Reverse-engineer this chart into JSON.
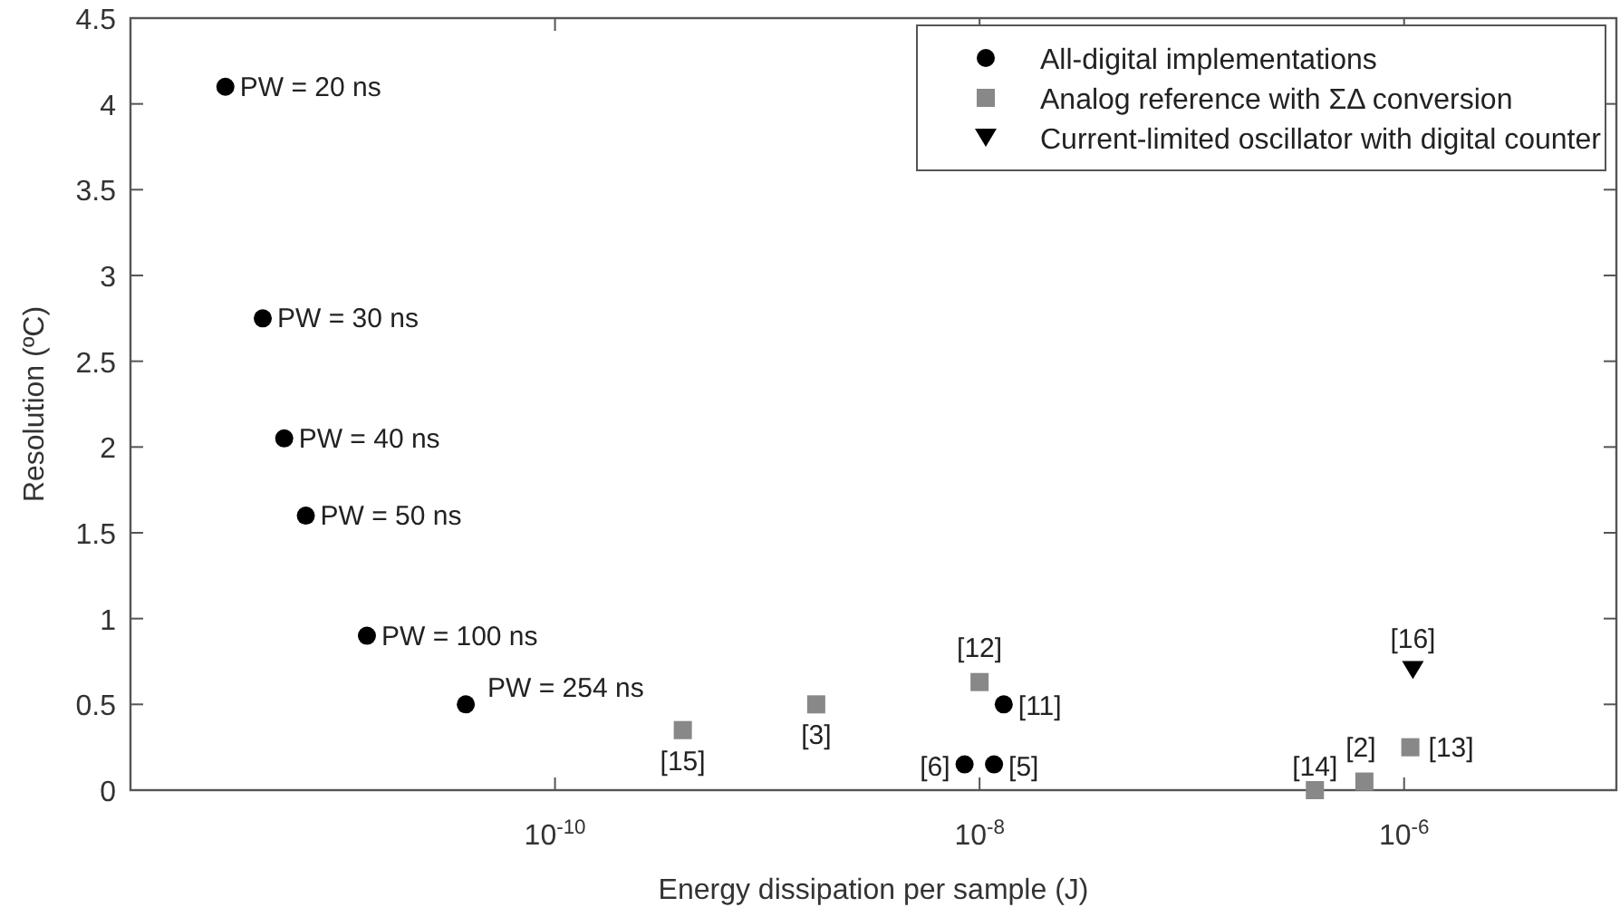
{
  "chart_data": {
    "type": "scatter",
    "xlabel": "Energy dissipation per sample (J)",
    "ylabel": "Resolution (ºC)",
    "log": "x",
    "xlim": [
      1e-12,
      1e-05
    ],
    "xticks": [
      {
        "value": 1e-10,
        "label": "10$^{-10}$"
      },
      {
        "value": 1e-08,
        "label": "10$^{-8}$"
      },
      {
        "value": 1e-06,
        "label": "10$^{-6}$"
      }
    ],
    "ylim": [
      0,
      4.5
    ],
    "yticks": [
      0,
      0.5,
      1,
      1.5,
      2,
      2.5,
      3,
      3.5,
      4,
      4.5
    ],
    "grid": false,
    "legend": "top right",
    "series": [
      {
        "name": "All-digital implementations",
        "color": "#000000",
        "marker": "circle",
        "x": [
          2.8e-12,
          4.2e-12,
          5.3e-12,
          6.7e-12,
          1.3e-11,
          3.8e-11,
          1.3e-08,
          8.5e-09,
          1.17e-08
        ],
        "values": [
          4.1,
          2.75,
          2.05,
          1.6,
          0.9,
          0.5,
          0.5,
          0.15,
          0.15
        ]
      },
      {
        "name": "Analog reference with ΣΔ conversion",
        "color": "#888888",
        "marker": "square",
        "x": [
          4e-10,
          1.7e-09,
          1e-08,
          3.8e-07,
          6.5e-07,
          1.07e-06
        ],
        "values": [
          0.35,
          0.5,
          0.63,
          0,
          0.05,
          0.25
        ]
      },
      {
        "name": "Current-limited oscillator with digital counter",
        "color": "#000000",
        "marker": "triangle",
        "x": [
          1.1e-06
        ],
        "values": [
          0.7
        ]
      }
    ],
    "annotations": [
      {
        "text": "PW = 20 ns",
        "x": 2.8e-12,
        "y": 4.1
      },
      {
        "text": "PW = 30 ns",
        "x": 4.2e-12,
        "y": 2.75
      },
      {
        "text": "PW = 40 ns",
        "x": 5.3e-12,
        "y": 2.05
      },
      {
        "text": "PW = 50 ns",
        "x": 6.7e-12,
        "y": 1.6
      },
      {
        "text": "PW = 100 ns",
        "x": 1.3e-11,
        "y": 0.9
      },
      {
        "text": "PW = 254 ns",
        "x": 3.8e-11,
        "y": 0.5
      },
      {
        "text": "[15]",
        "x": 4e-10,
        "y": 0.35
      },
      {
        "text": "[3]",
        "x": 1.7e-09,
        "y": 0.5
      },
      {
        "text": "[12]",
        "x": 1e-08,
        "y": 0.63
      },
      {
        "text": "[11]",
        "x": 1.3e-08,
        "y": 0.5
      },
      {
        "text": "[6]",
        "x": 8.5e-09,
        "y": 0.15
      },
      {
        "text": "[5]",
        "x": 1.17e-08,
        "y": 0.15
      },
      {
        "text": "[14]",
        "x": 3.8e-07,
        "y": 0
      },
      {
        "text": "[2]",
        "x": 6.5e-07,
        "y": 0.05
      },
      {
        "text": "[13]",
        "x": 1.07e-06,
        "y": 0.25
      },
      {
        "text": "[16]",
        "x": 1.1e-06,
        "y": 0.7
      }
    ]
  }
}
